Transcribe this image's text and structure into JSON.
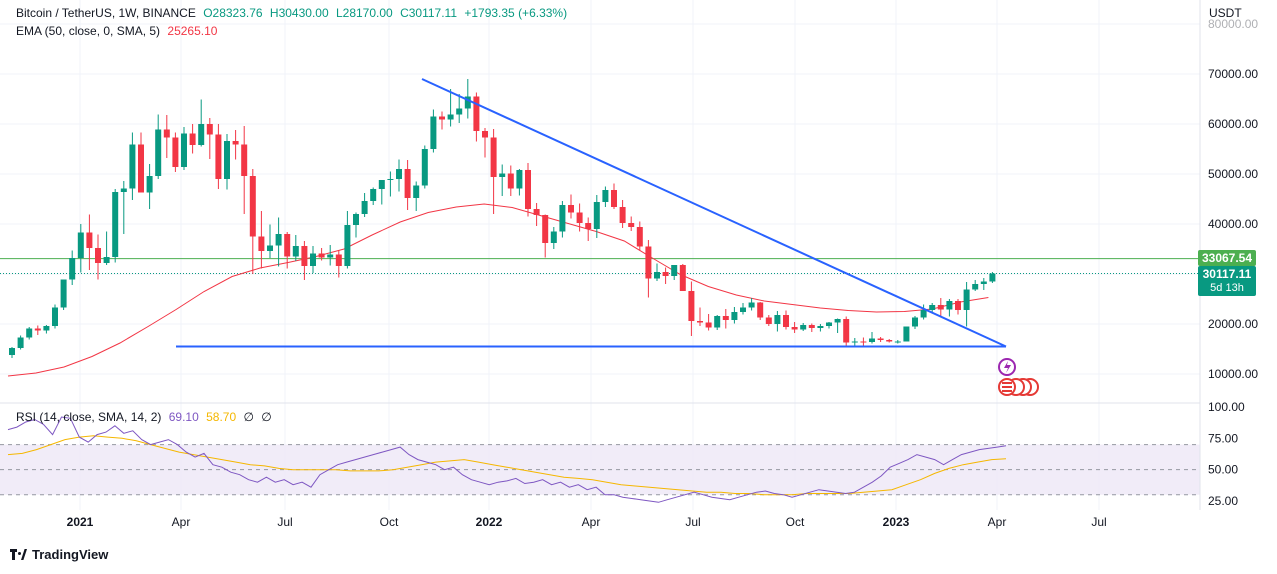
{
  "header": {
    "symbol": "Bitcoin / TetherUS, 1W, BINANCE",
    "open": "O28323.76",
    "high": "H30430.00",
    "low": "L28170.00",
    "close": "C30117.11",
    "change": "+1793.35 (+6.33%)"
  },
  "ema_legend": {
    "label": "EMA (50, close, 0, SMA, 5)",
    "value": "25265.10"
  },
  "rsi_legend": {
    "label": "RSI (14, close, SMA, 14, 2)",
    "rsi_value": "69.10",
    "ma_value": "58.70",
    "extra1": "∅",
    "extra2": "∅"
  },
  "axis": {
    "currency": "USDT",
    "price_ticks": [
      "70000.00",
      "60000.00",
      "50000.00",
      "40000.00",
      "20000.00",
      "10000.00"
    ],
    "top_cut_tick": "80000.00",
    "rsi_ticks": [
      "100.00",
      "75.00",
      "50.00",
      "25.00"
    ],
    "time_ticks": [
      "2021",
      "Apr",
      "Jul",
      "Oct",
      "2022",
      "Apr",
      "Jul",
      "Oct",
      "2023",
      "Apr",
      "Jul"
    ]
  },
  "tags": {
    "level": "33067.54",
    "last_price": "30117.11",
    "countdown": "5d 13h"
  },
  "branding": {
    "name": "TradingView"
  },
  "colors": {
    "up": "#089981",
    "down": "#f23645",
    "ema": "#f23645",
    "trend": "#2962ff",
    "level": "#4caf50",
    "rsi": "#7e57c2",
    "rsi_ma": "#f5b700",
    "rsi_band": "#ede7f6"
  },
  "chart_data": {
    "type": "candlestick",
    "symbol": "BTCUSDT",
    "timeframe": "1W",
    "price_range": [
      5000,
      80000
    ],
    "ohlc_weekly": [
      [
        13800,
        15400,
        13200,
        15200
      ],
      [
        15200,
        17700,
        14900,
        17300
      ],
      [
        17300,
        19400,
        16900,
        19100
      ],
      [
        19100,
        19700,
        17800,
        18700
      ],
      [
        18700,
        19800,
        18100,
        19600
      ],
      [
        19600,
        23900,
        19100,
        23300
      ],
      [
        23300,
        28700,
        22800,
        28900
      ],
      [
        28900,
        34700,
        27800,
        33200
      ],
      [
        33200,
        40000,
        30300,
        38300
      ],
      [
        38300,
        41900,
        30800,
        35200
      ],
      [
        35200,
        37900,
        28900,
        32200
      ],
      [
        32200,
        38500,
        31800,
        33400
      ],
      [
        33400,
        47000,
        32300,
        46400
      ],
      [
        46400,
        48600,
        38000,
        47100
      ],
      [
        47100,
        58300,
        44800,
        55900
      ],
      [
        55900,
        58300,
        46900,
        46300
      ],
      [
        46300,
        52000,
        43000,
        49600
      ],
      [
        49600,
        61900,
        49000,
        58900
      ],
      [
        58900,
        61800,
        53200,
        57300
      ],
      [
        57300,
        58300,
        50400,
        51400
      ],
      [
        51400,
        59400,
        50800,
        58100
      ],
      [
        58100,
        60000,
        54100,
        55800
      ],
      [
        55800,
        64900,
        55500,
        60000
      ],
      [
        60000,
        61200,
        53000,
        57900
      ],
      [
        57900,
        60000,
        47000,
        49000
      ],
      [
        49000,
        58000,
        46900,
        56600
      ],
      [
        56600,
        58800,
        52900,
        55900
      ],
      [
        55900,
        59600,
        42000,
        49600
      ],
      [
        49600,
        51000,
        30000,
        37500
      ],
      [
        37500,
        42600,
        31100,
        34600
      ],
      [
        34600,
        39900,
        33200,
        35700
      ],
      [
        35700,
        41300,
        31500,
        38000
      ],
      [
        38000,
        38400,
        31100,
        33500
      ],
      [
        33500,
        37800,
        32600,
        35600
      ],
      [
        35600,
        36600,
        28800,
        31600
      ],
      [
        31600,
        35600,
        30200,
        34100
      ],
      [
        34100,
        35200,
        32700,
        33300
      ],
      [
        33300,
        35800,
        31700,
        33900
      ],
      [
        33900,
        34800,
        29300,
        31600
      ],
      [
        31600,
        42600,
        31100,
        39800
      ],
      [
        39800,
        42300,
        37300,
        42000
      ],
      [
        42000,
        46200,
        41400,
        44600
      ],
      [
        44600,
        47300,
        43800,
        47000
      ],
      [
        47000,
        48100,
        43900,
        48800
      ],
      [
        48800,
        50500,
        45500,
        49000
      ],
      [
        49000,
        52900,
        46500,
        51000
      ],
      [
        51000,
        52800,
        42800,
        45200
      ],
      [
        45200,
        48500,
        42600,
        47700
      ],
      [
        47700,
        55700,
        47100,
        55000
      ],
      [
        55000,
        62900,
        54300,
        61500
      ],
      [
        61500,
        62500,
        58900,
        60900
      ],
      [
        60900,
        67000,
        59500,
        61900
      ],
      [
        61900,
        66000,
        60200,
        63100
      ],
      [
        63100,
        69000,
        61100,
        65500
      ],
      [
        65500,
        66300,
        56500,
        58600
      ],
      [
        58600,
        59200,
        53300,
        57300
      ],
      [
        57300,
        59000,
        42000,
        49400
      ],
      [
        49400,
        51900,
        45600,
        50100
      ],
      [
        50100,
        51700,
        45600,
        47100
      ],
      [
        47100,
        51000,
        45700,
        50800
      ],
      [
        50800,
        52200,
        41500,
        43000
      ],
      [
        43000,
        44200,
        39600,
        41800
      ],
      [
        41800,
        41900,
        33300,
        36200
      ],
      [
        36200,
        39400,
        35000,
        38500
      ],
      [
        38500,
        44600,
        37300,
        43800
      ],
      [
        43800,
        45900,
        41100,
        42300
      ],
      [
        42300,
        44100,
        38500,
        40200
      ],
      [
        40200,
        41300,
        36600,
        39000
      ],
      [
        39000,
        45800,
        37200,
        44400
      ],
      [
        44400,
        47500,
        43400,
        46800
      ],
      [
        46800,
        48100,
        43000,
        43400
      ],
      [
        43400,
        44800,
        39200,
        40200
      ],
      [
        40200,
        41500,
        38600,
        39400
      ],
      [
        39400,
        40500,
        34700,
        35500
      ],
      [
        35500,
        36800,
        25300,
        29100
      ],
      [
        29100,
        32100,
        28600,
        30400
      ],
      [
        30400,
        31300,
        28000,
        29600
      ],
      [
        29600,
        31800,
        28800,
        31800
      ],
      [
        31800,
        32000,
        26700,
        26600
      ],
      [
        26600,
        28500,
        17600,
        20600
      ],
      [
        20600,
        23300,
        19600,
        20300
      ],
      [
        20300,
        22000,
        18700,
        19300
      ],
      [
        19300,
        21800,
        18800,
        21600
      ],
      [
        21600,
        23000,
        19100,
        20800
      ],
      [
        20800,
        23400,
        20100,
        22400
      ],
      [
        22400,
        24200,
        21900,
        23300
      ],
      [
        23300,
        25200,
        22700,
        24300
      ],
      [
        24300,
        24400,
        20800,
        21300
      ],
      [
        21300,
        21800,
        19600,
        20000
      ],
      [
        20000,
        22600,
        18500,
        21800
      ],
      [
        21800,
        22700,
        18900,
        19400
      ],
      [
        19400,
        20400,
        18200,
        18900
      ],
      [
        18900,
        20200,
        18600,
        19800
      ],
      [
        19800,
        20100,
        18400,
        19200
      ],
      [
        19200,
        20000,
        18500,
        19600
      ],
      [
        19600,
        20400,
        19100,
        20300
      ],
      [
        20300,
        21100,
        18200,
        21000
      ],
      [
        21000,
        21500,
        15500,
        16300
      ],
      [
        16300,
        17200,
        15600,
        16500
      ],
      [
        16500,
        17300,
        15700,
        16400
      ],
      [
        16400,
        18400,
        16100,
        17100
      ],
      [
        17100,
        17400,
        16400,
        16800
      ],
      [
        16800,
        17000,
        16300,
        16500
      ],
      [
        16500,
        16800,
        16100,
        16500
      ],
      [
        16500,
        18900,
        16500,
        19500
      ],
      [
        19500,
        21600,
        19000,
        21300
      ],
      [
        21300,
        23900,
        20900,
        22800
      ],
      [
        22800,
        24200,
        22400,
        23800
      ],
      [
        23800,
        25200,
        21400,
        22900
      ],
      [
        22900,
        25000,
        21500,
        24600
      ],
      [
        24600,
        25000,
        21900,
        22800
      ],
      [
        22800,
        28400,
        19500,
        26900
      ],
      [
        26900,
        28800,
        26600,
        28000
      ],
      [
        28000,
        29200,
        26800,
        28500
      ],
      [
        28500,
        30400,
        28200,
        30100
      ]
    ],
    "ema50": {
      "label": "EMA (50, close, 0, SMA, 5)",
      "last": 25265.1,
      "path_values": [
        9600,
        10200,
        11400,
        13500,
        16200,
        19500,
        22900,
        26500,
        29500,
        31200,
        32300,
        33500,
        35000,
        37800,
        40400,
        42300,
        43400,
        44000,
        43300,
        41700,
        40100,
        38500,
        36600,
        33200,
        29900,
        27500,
        25800,
        24600,
        23900,
        23200,
        22700,
        22400,
        22500,
        23000,
        24400,
        25300
      ]
    },
    "horizontal_level": 33067.54,
    "trend_lines": [
      {
        "name": "descending",
        "from": {
          "week": 53,
          "price": 69000
        },
        "to": {
          "week": 116,
          "price": 15500
        }
      },
      {
        "name": "support",
        "from": {
          "week": 16,
          "price": 15500
        },
        "to": {
          "week": 116,
          "price": 15500
        }
      }
    ],
    "rsi": {
      "length": 14,
      "value": 69.1,
      "ma_value": 58.7,
      "range": [
        0,
        100
      ],
      "bands": [
        30,
        70
      ],
      "rsi_series": [
        82,
        84,
        88,
        90,
        86,
        78,
        92,
        91,
        76,
        72,
        78,
        80,
        85,
        79,
        81,
        74,
        70,
        72,
        74,
        70,
        64,
        60,
        63,
        54,
        52,
        48,
        46,
        42,
        40,
        44,
        40,
        42,
        38,
        40,
        36,
        46,
        50,
        54,
        56,
        58,
        60,
        62,
        64,
        66,
        68,
        62,
        58,
        56,
        54,
        50,
        52,
        46,
        42,
        40,
        38,
        40,
        41,
        43,
        39,
        40,
        42,
        38,
        40,
        36,
        38,
        34,
        36,
        30,
        30,
        28,
        27,
        26,
        25,
        24,
        26,
        28,
        30,
        32,
        30,
        28,
        27,
        26,
        28,
        30,
        32,
        33,
        31,
        30,
        28,
        30,
        32,
        34,
        33,
        32,
        31,
        32,
        36,
        40,
        45,
        52,
        55,
        58,
        62,
        60,
        58,
        54,
        58,
        62,
        64,
        66,
        67,
        68,
        69.1
      ],
      "ma_series": [
        62,
        63,
        66,
        70,
        74,
        76,
        77,
        76,
        75,
        73,
        70,
        67,
        64,
        62,
        60,
        58,
        56,
        54,
        53,
        51,
        50,
        50,
        50,
        50,
        49,
        49,
        49,
        50,
        52,
        54,
        56,
        57,
        58,
        56,
        54,
        52,
        50,
        48,
        46,
        44,
        43,
        42,
        40,
        38,
        37,
        36,
        35,
        34,
        33,
        32,
        32,
        31,
        31,
        30,
        30,
        30,
        31,
        31,
        31,
        31,
        32,
        33,
        34,
        38,
        42,
        47,
        51,
        54,
        56,
        58,
        58.7
      ]
    },
    "time_labels": [
      "2021",
      "Apr",
      "Jul",
      "Oct",
      "2022",
      "Apr",
      "Jul",
      "Oct",
      "2023",
      "Apr",
      "Jul"
    ]
  }
}
